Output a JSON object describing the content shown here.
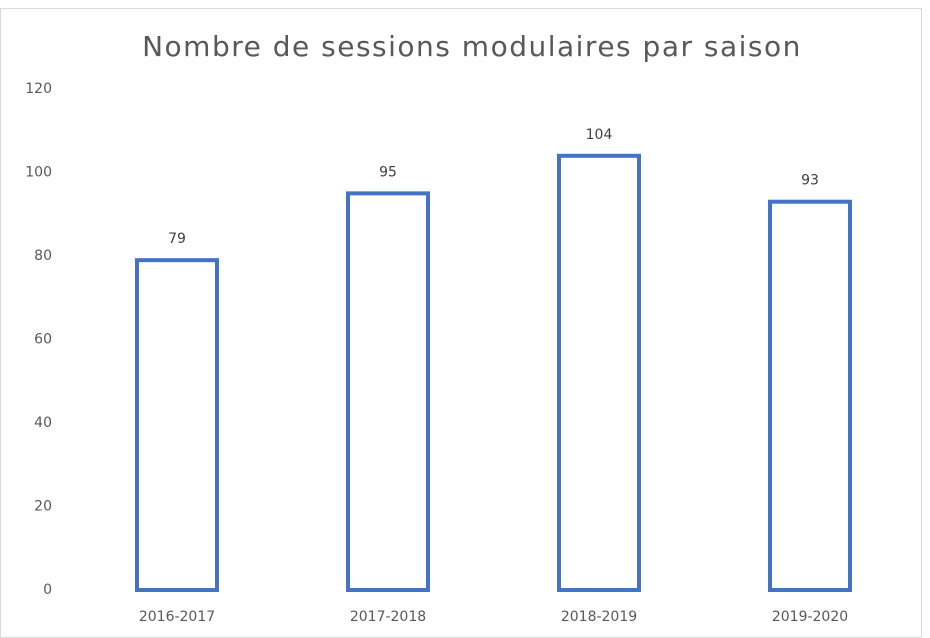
{
  "chart_data": {
    "type": "bar",
    "title": "Nombre de sessions modulaires par saison",
    "categories": [
      "2016-2017",
      "2017-2018",
      "2018-2019",
      "2019-2020"
    ],
    "values": [
      79,
      95,
      104,
      93
    ],
    "color": "#4472c4",
    "ylim": [
      0,
      120
    ],
    "yticks": [
      0,
      20,
      40,
      60,
      80,
      100,
      120
    ],
    "grid": false
  }
}
